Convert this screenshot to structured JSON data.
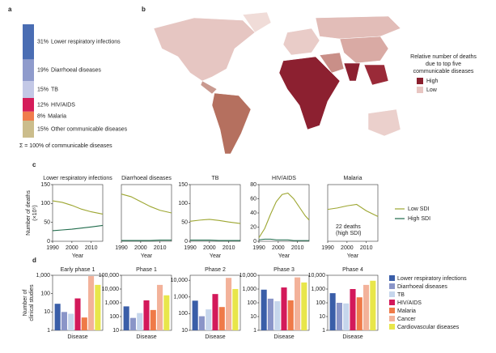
{
  "panel_labels": [
    "a",
    "b",
    "c",
    "d"
  ],
  "chart_data": [
    {
      "type": "stacked_bar",
      "categories": [
        "Lower respiratory infections",
        "Diarrhoeal diseases",
        "TB",
        "HIV/AIDS",
        "Malaria",
        "Other communicable diseases"
      ],
      "values": [
        31,
        19,
        15,
        12,
        8,
        15
      ],
      "value_labels": [
        "31%",
        "19%",
        "15%",
        "12%",
        "8%",
        "15%"
      ],
      "colors": [
        "#4a6db3",
        "#8f9bcc",
        "#c3c8e6",
        "#d51c5a",
        "#f07c4c",
        "#cbbd8c"
      ],
      "note": "Σ = 100% of communicable diseases"
    },
    {
      "type": "map",
      "legend_title": [
        "Relative number of deaths",
        "due to top five",
        "communicable diseases"
      ],
      "legend": [
        {
          "label": "High",
          "color": "#8b1f2e"
        },
        {
          "label": "Low",
          "color": "#e8c6c2"
        }
      ]
    },
    {
      "type": "line",
      "title": "Lower respiratory infections",
      "xlabel": "Year",
      "ylabel": [
        "Number of deaths",
        "(×10⁵)"
      ],
      "x": [
        1990,
        1995,
        2000,
        2005,
        2010,
        2016
      ],
      "xlim": [
        1990,
        2016
      ],
      "xticks": [
        1990,
        2000,
        2010
      ],
      "ylim": [
        0,
        150
      ],
      "yticks": [
        0,
        50,
        100,
        150
      ],
      "series": [
        {
          "name": "Low SDI",
          "color": "#9da631",
          "values": [
            107,
            103,
            95,
            85,
            78,
            72
          ]
        },
        {
          "name": "High SDI",
          "color": "#1f6b4b",
          "values": [
            28,
            30,
            32,
            35,
            38,
            42
          ]
        }
      ]
    },
    {
      "type": "line",
      "title": "Diarrhoeal diseases",
      "xlabel": "Year",
      "x": [
        1990,
        1995,
        2000,
        2005,
        2010,
        2016
      ],
      "xlim": [
        1990,
        2016
      ],
      "xticks": [
        1990,
        2000,
        2010
      ],
      "ylim": [
        0,
        150
      ],
      "series": [
        {
          "color": "#9da631",
          "values": [
            125,
            118,
            105,
            92,
            82,
            75
          ]
        },
        {
          "color": "#1f6b4b",
          "values": [
            2,
            2,
            2,
            2,
            3,
            3
          ]
        }
      ]
    },
    {
      "type": "line",
      "title": "TB",
      "xlabel": "Year",
      "x": [
        1990,
        1995,
        2000,
        2005,
        2010,
        2016
      ],
      "xlim": [
        1990,
        2016
      ],
      "xticks": [
        1990,
        2000,
        2010
      ],
      "ylim": [
        0,
        150
      ],
      "yticks": [
        0,
        50,
        100,
        150
      ],
      "series": [
        {
          "color": "#9da631",
          "values": [
            53,
            56,
            58,
            55,
            51,
            47
          ]
        },
        {
          "color": "#1f6b4b",
          "values": [
            3,
            3,
            3,
            2,
            2,
            2
          ]
        }
      ]
    },
    {
      "type": "line",
      "title": "HIV/AIDS",
      "xlabel": "Year",
      "x": [
        1990,
        1993,
        1996,
        1999,
        2002,
        2005,
        2008,
        2011,
        2014,
        2016
      ],
      "xlim": [
        1990,
        2016
      ],
      "xticks": [
        1990,
        2000,
        2010
      ],
      "ylim": [
        0,
        80
      ],
      "yticks": [
        0,
        20,
        40,
        60,
        80
      ],
      "series": [
        {
          "color": "#9da631",
          "values": [
            5,
            18,
            38,
            56,
            66,
            68,
            60,
            48,
            36,
            30
          ]
        },
        {
          "color": "#1f6b4b",
          "values": [
            2,
            3,
            3,
            2,
            2,
            2,
            1,
            1,
            1,
            1
          ]
        }
      ]
    },
    {
      "type": "line",
      "title": "Malaria",
      "xlabel": "Year",
      "annotation": [
        "22 deaths",
        "(high SDI)"
      ],
      "x": [
        1990,
        1995,
        2000,
        2005,
        2010,
        2016
      ],
      "xlim": [
        1990,
        2016
      ],
      "xticks": [
        1990,
        2000,
        2010
      ],
      "ylim": [
        0,
        80
      ],
      "series": [
        {
          "color": "#9da631",
          "values": [
            45,
            47,
            50,
            52,
            43,
            35
          ]
        }
      ]
    },
    {
      "type": "bar",
      "title": "Early phase 1",
      "xlabel": "Disease",
      "ylabel": [
        "Number of",
        "clinical studies"
      ],
      "yscale": "log",
      "ylim": [
        1,
        1000
      ],
      "yticks": [
        1,
        10,
        100,
        {
          "value": 1000,
          "label": "1,000"
        }
      ],
      "values": [
        28,
        10,
        8,
        55,
        5,
        900,
        300
      ]
    },
    {
      "type": "bar",
      "title": "Phase 1",
      "xlabel": "Disease",
      "yscale": "log",
      "ylim": [
        10,
        100000
      ],
      "yticks": [
        10,
        100,
        {
          "value": 1000,
          "label": "1,000"
        },
        {
          "value": 10000,
          "label": "10,000"
        },
        {
          "value": 100000,
          "label": "100,000"
        }
      ],
      "values": [
        550,
        80,
        180,
        1500,
        300,
        20000,
        3500
      ]
    },
    {
      "type": "bar",
      "title": "Phase 2",
      "xlabel": "Disease",
      "yscale": "log",
      "ylim": [
        10,
        20000
      ],
      "yticks": [
        10,
        100,
        {
          "value": 1000,
          "label": "1,000"
        },
        {
          "value": 10000,
          "label": "10,000"
        }
      ],
      "values": [
        600,
        70,
        180,
        1500,
        250,
        14000,
        3000
      ]
    },
    {
      "type": "bar",
      "title": "Phase 3",
      "xlabel": "Disease",
      "yscale": "log",
      "ylim": [
        1,
        10000
      ],
      "yticks": [
        1,
        10,
        100,
        {
          "value": 1000,
          "label": "1,000"
        },
        {
          "value": 10000,
          "label": "10,000"
        }
      ],
      "values": [
        900,
        200,
        130,
        1300,
        150,
        7000,
        3000
      ]
    },
    {
      "type": "bar",
      "title": "Phase 4",
      "xlabel": "Disease",
      "yscale": "log",
      "ylim": [
        1,
        10000
      ],
      "yticks": [
        1,
        10,
        100,
        {
          "value": 1000,
          "label": "1,000"
        },
        {
          "value": 10000,
          "label": "10,000"
        }
      ],
      "values": [
        500,
        100,
        90,
        1000,
        250,
        2000,
        4000
      ]
    }
  ],
  "disease_legend": {
    "labels": [
      "Lower respiratory infections",
      "Diarrhoeal diseases",
      "TB",
      "HIV/AIDS",
      "Malaria",
      "Cancer",
      "Cardiovascular diseases"
    ],
    "colors": [
      "#3a5ea8",
      "#8a95c8",
      "#c6d6ec",
      "#d3195a",
      "#ef7a48",
      "#f3b29a",
      "#e8e64a"
    ]
  }
}
